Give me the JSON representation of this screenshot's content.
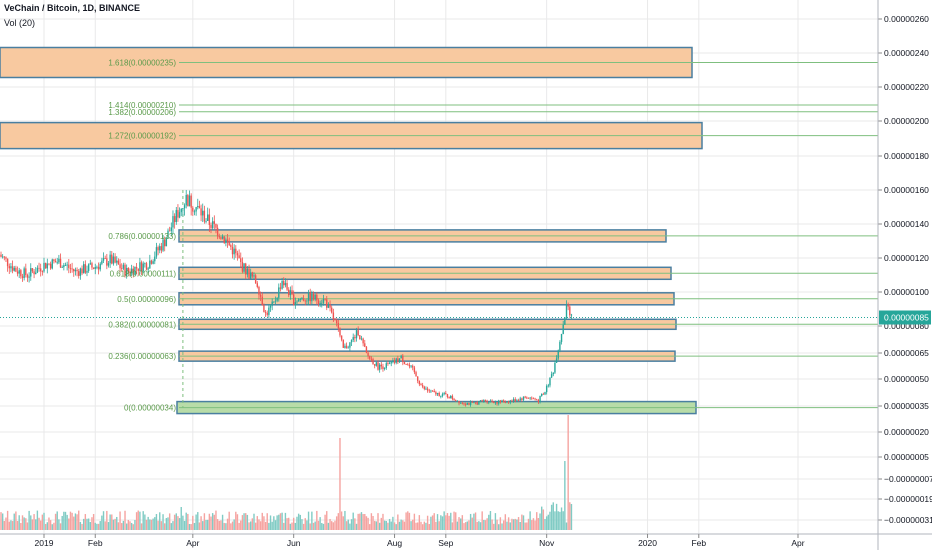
{
  "header": {
    "title": "VeChain / Bitcoin, 1D, BINANCE",
    "indicator": "Vol (20)"
  },
  "colors": {
    "up": "#26a69a",
    "down": "#ef5350",
    "up_vol": "#80cbc4",
    "down_vol": "#f5a3a0",
    "zone_fill": "#f8c9a0",
    "zone_border": "#4a7fa0",
    "base_fill": "#b8dca8",
    "fib_line": "#7fbf7f",
    "fib_text": "#5a9a4a",
    "price_tag": "#26a69a",
    "grid": "#e9e9ea",
    "axis_text": "#131722"
  },
  "chart_data": {
    "type": "candlestick",
    "symbol": "VeChain / Bitcoin",
    "interval": "1D",
    "exchange": "BINANCE",
    "last_price": "0.00000085",
    "y_axis_labels": [
      "0.00000260",
      "0.00000240",
      "0.00000220",
      "0.00000200",
      "0.00000180",
      "0.00000160",
      "0.00000140",
      "0.00000120",
      "0.00000100",
      "0.00000080",
      "0.00000065",
      "0.00000050",
      "0.00000035",
      "0.00000020",
      "0.00000005",
      "−0.00000007",
      "−0.00000019",
      "−0.00000031"
    ],
    "x_axis_labels": [
      "2019",
      "Feb",
      "Apr",
      "Jun",
      "Aug",
      "Sep",
      "Nov",
      "2020",
      "Feb",
      "Apr"
    ],
    "fib_levels": [
      {
        "label": "1.618(0.00000235)",
        "value": 2.35e-06,
        "zone": true
      },
      {
        "label": "1.414(0.00000210)",
        "value": 2.1e-06,
        "zone": false
      },
      {
        "label": "1.382(0.00000206)",
        "value": 2.06e-06,
        "zone": false
      },
      {
        "label": "1.272(0.00000192)",
        "value": 1.92e-06,
        "zone": true
      },
      {
        "label": "0.786(0.00000133)",
        "value": 1.33e-06,
        "zone": true
      },
      {
        "label": "0.618(0.00000111)",
        "value": 1.11e-06,
        "zone": true
      },
      {
        "label": "0.5(0.00000096)",
        "value": 9.6e-07,
        "zone": true
      },
      {
        "label": "0.382(0.00000081)",
        "value": 8.1e-07,
        "zone": true
      },
      {
        "label": "0.236(0.00000063)",
        "value": 6.3e-07,
        "zone": true
      },
      {
        "label": "0(0.00000034)",
        "value": 3.4e-07,
        "zone": true
      }
    ],
    "price_path": [
      [
        "2018-12-05",
        1.22
      ],
      [
        "2018-12-15",
        1.13
      ],
      [
        "2018-12-22",
        1.1
      ],
      [
        "2019-01-01",
        1.16
      ],
      [
        "2019-01-10",
        1.18
      ],
      [
        "2019-01-20",
        1.12
      ],
      [
        "2019-02-01",
        1.15
      ],
      [
        "2019-02-10",
        1.19
      ],
      [
        "2019-02-20",
        1.12
      ],
      [
        "2019-03-05",
        1.17
      ],
      [
        "2019-03-15",
        1.3
      ],
      [
        "2019-03-22",
        1.45
      ],
      [
        "2019-03-28",
        1.55
      ],
      [
        "2019-04-03",
        1.5
      ],
      [
        "2019-04-10",
        1.42
      ],
      [
        "2019-04-18",
        1.34
      ],
      [
        "2019-04-25",
        1.25
      ],
      [
        "2019-05-01",
        1.15
      ],
      [
        "2019-05-10",
        1.05
      ],
      [
        "2019-05-15",
        0.87
      ],
      [
        "2019-05-20",
        0.93
      ],
      [
        "2019-05-25",
        1.07
      ],
      [
        "2019-06-01",
        0.95
      ],
      [
        "2019-06-10",
        0.97
      ],
      [
        "2019-06-20",
        0.95
      ],
      [
        "2019-06-27",
        0.8
      ],
      [
        "2019-07-01",
        0.67
      ],
      [
        "2019-07-05",
        0.7
      ],
      [
        "2019-07-10",
        0.77
      ],
      [
        "2019-07-15",
        0.64
      ],
      [
        "2019-07-22",
        0.57
      ],
      [
        "2019-07-29",
        0.58
      ],
      [
        "2019-08-05",
        0.62
      ],
      [
        "2019-08-12",
        0.55
      ],
      [
        "2019-08-18",
        0.45
      ],
      [
        "2019-08-25",
        0.42
      ],
      [
        "2019-09-01",
        0.41
      ],
      [
        "2019-09-10",
        0.37
      ],
      [
        "2019-09-17",
        0.36
      ],
      [
        "2019-09-25",
        0.38
      ],
      [
        "2019-10-03",
        0.37
      ],
      [
        "2019-10-12",
        0.38
      ],
      [
        "2019-10-20",
        0.4
      ],
      [
        "2019-10-27",
        0.38
      ],
      [
        "2019-11-01",
        0.45
      ],
      [
        "2019-11-05",
        0.55
      ],
      [
        "2019-11-09",
        0.72
      ],
      [
        "2019-11-13",
        0.91
      ],
      [
        "2019-11-16",
        0.85
      ]
    ],
    "volume_spikes": [
      [
        "2019-03-25",
        0.2
      ],
      [
        "2019-06-29",
        0.8
      ],
      [
        "2019-11-12",
        0.6
      ],
      [
        "2019-11-14",
        1.0
      ]
    ]
  }
}
